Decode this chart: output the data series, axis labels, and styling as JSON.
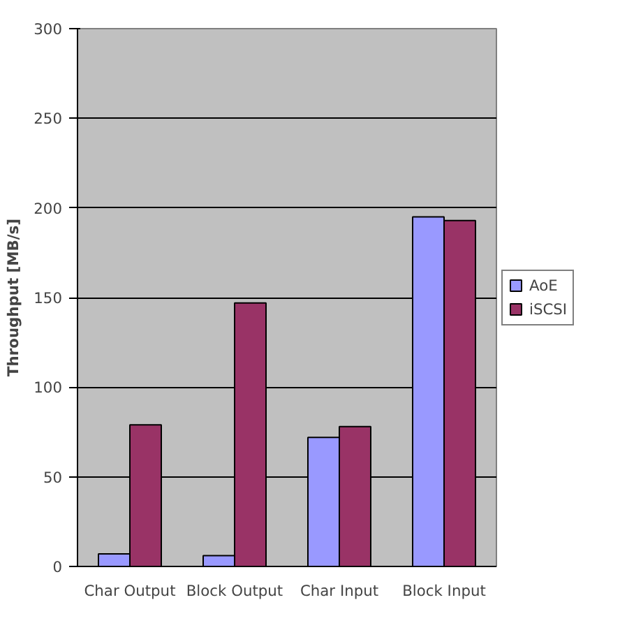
{
  "chart_data": {
    "type": "bar",
    "ylabel": "Throughput [MB/s]",
    "categories": [
      "Char Output",
      "Block Output",
      "Char Input",
      "Block Input"
    ],
    "series": [
      {
        "name": "AoE",
        "color": "#9999ff",
        "values": [
          7,
          6,
          72,
          195
        ]
      },
      {
        "name": "iSCSI",
        "color": "#993366",
        "values": [
          79,
          147,
          78,
          193
        ]
      }
    ],
    "ylim": [
      0,
      300
    ],
    "yticks": [
      0,
      50,
      100,
      150,
      200,
      250,
      300
    ],
    "grid": "y",
    "legend": "right"
  }
}
